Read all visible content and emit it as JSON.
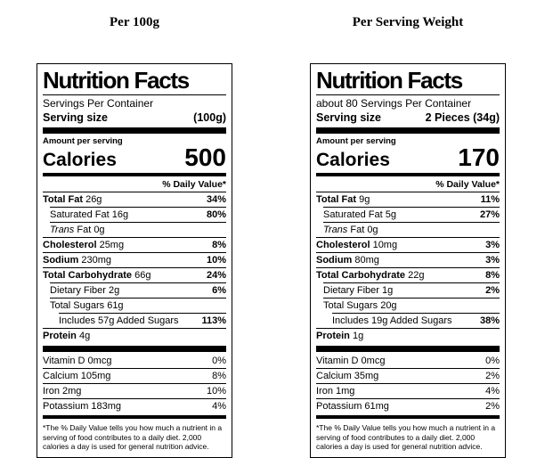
{
  "colors": {
    "text": "#000000",
    "background": "#ffffff",
    "border": "#000000"
  },
  "columns": [
    {
      "header_title": "Per 100g",
      "label": {
        "title": "Nutrition Facts",
        "servings_per_container": "Servings Per Container",
        "serving_size_label": "Serving size",
        "serving_size_value": "(100g)",
        "amount_per_serving": "Amount per serving",
        "calories_label": "Calories",
        "calories_value": "500",
        "daily_value_header": "% Daily Value*",
        "nutrients": [
          {
            "bold_part": "Total Fat",
            "rest": "26g",
            "dv": "34%",
            "indent": 0
          },
          {
            "plain": "Saturated Fat 16g",
            "dv": "80%",
            "indent": 1
          },
          {
            "italic_part": "Trans",
            "rest": "Fat 0g",
            "dv": "",
            "indent": 1
          },
          {
            "bold_part": "Cholesterol",
            "rest": "25mg",
            "dv": "8%",
            "indent": 0
          },
          {
            "bold_part": "Sodium",
            "rest": "230mg",
            "dv": "10%",
            "indent": 0
          },
          {
            "bold_part": "Total Carbohydrate",
            "rest": "66g",
            "dv": "24%",
            "indent": 0
          },
          {
            "plain": "Dietary Fiber 2g",
            "dv": "6%",
            "indent": 1
          },
          {
            "plain": "Total Sugars 61g",
            "dv": "",
            "indent": 1
          },
          {
            "plain": "Includes 57g Added Sugars",
            "dv": "113%",
            "indent": 2
          },
          {
            "bold_part": "Protein",
            "rest": "4g",
            "dv": "",
            "indent": 0
          }
        ],
        "vitamins": [
          {
            "plain": "Vitamin D 0mcg",
            "dv": "0%",
            "indent": 0
          },
          {
            "plain": "Calcium 105mg",
            "dv": "8%",
            "indent": 0
          },
          {
            "plain": "Iron 2mg",
            "dv": "10%",
            "indent": 0
          },
          {
            "plain": "Potassium 183mg",
            "dv": "4%",
            "indent": 0
          }
        ],
        "footnote": "*The % Daily Value tells you how much a nutrient in a serving of food contributes to a daily diet. 2,000 calories a day is used for general nutrition advice."
      }
    },
    {
      "header_title": "Per Serving Weight",
      "label": {
        "title": "Nutrition Facts",
        "servings_per_container": "about 80 Servings Per Container",
        "serving_size_label": "Serving size",
        "serving_size_value": "2 Pieces (34g)",
        "amount_per_serving": "Amount per serving",
        "calories_label": "Calories",
        "calories_value": "170",
        "daily_value_header": "% Daily Value*",
        "nutrients": [
          {
            "bold_part": "Total Fat",
            "rest": "9g",
            "dv": "11%",
            "indent": 0
          },
          {
            "plain": "Saturated Fat 5g",
            "dv": "27%",
            "indent": 1
          },
          {
            "italic_part": "Trans",
            "rest": "Fat 0g",
            "dv": "",
            "indent": 1
          },
          {
            "bold_part": "Cholesterol",
            "rest": "10mg",
            "dv": "3%",
            "indent": 0
          },
          {
            "bold_part": "Sodium",
            "rest": "80mg",
            "dv": "3%",
            "indent": 0
          },
          {
            "bold_part": "Total Carbohydrate",
            "rest": "22g",
            "dv": "8%",
            "indent": 0
          },
          {
            "plain": "Dietary Fiber 1g",
            "dv": "2%",
            "indent": 1
          },
          {
            "plain": "Total Sugars 20g",
            "dv": "",
            "indent": 1
          },
          {
            "plain": "Includes 19g Added Sugars",
            "dv": "38%",
            "indent": 2
          },
          {
            "bold_part": "Protein",
            "rest": "1g",
            "dv": "",
            "indent": 0
          }
        ],
        "vitamins": [
          {
            "plain": "Vitamin D 0mcg",
            "dv": "0%",
            "indent": 0
          },
          {
            "plain": "Calcium 35mg",
            "dv": "2%",
            "indent": 0
          },
          {
            "plain": "Iron 1mg",
            "dv": "4%",
            "indent": 0
          },
          {
            "plain": "Potassium 61mg",
            "dv": "2%",
            "indent": 0
          }
        ],
        "footnote": "*The % Daily Value tells you how much a nutrient in a serving of food contributes to a daily diet. 2,000 calories a day is used for general nutrition advice."
      }
    }
  ]
}
